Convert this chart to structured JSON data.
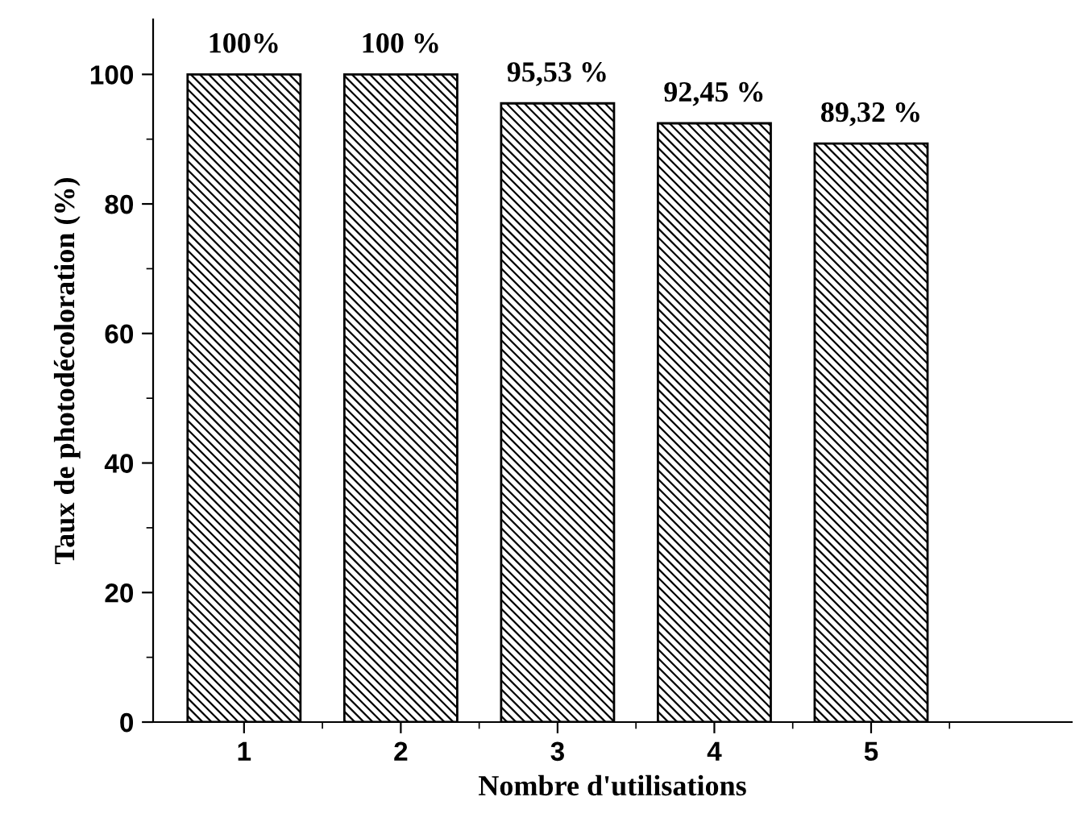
{
  "chart_data": {
    "type": "bar",
    "xlabel": "Nombre d'utilisations",
    "ylabel": "Taux de photodécoloration (%)",
    "categories": [
      "1",
      "2",
      "3",
      "4",
      "5"
    ],
    "values": [
      100,
      100,
      95.53,
      92.45,
      89.32
    ],
    "value_labels": [
      "100%",
      "100 %",
      "95,53 %",
      "92,45 %",
      "89,32 %"
    ],
    "color": "#000000",
    "ylim": [
      0,
      108.5
    ],
    "yticks": [
      0,
      20,
      40,
      60,
      80,
      100
    ],
    "grid": false,
    "legend": false
  }
}
